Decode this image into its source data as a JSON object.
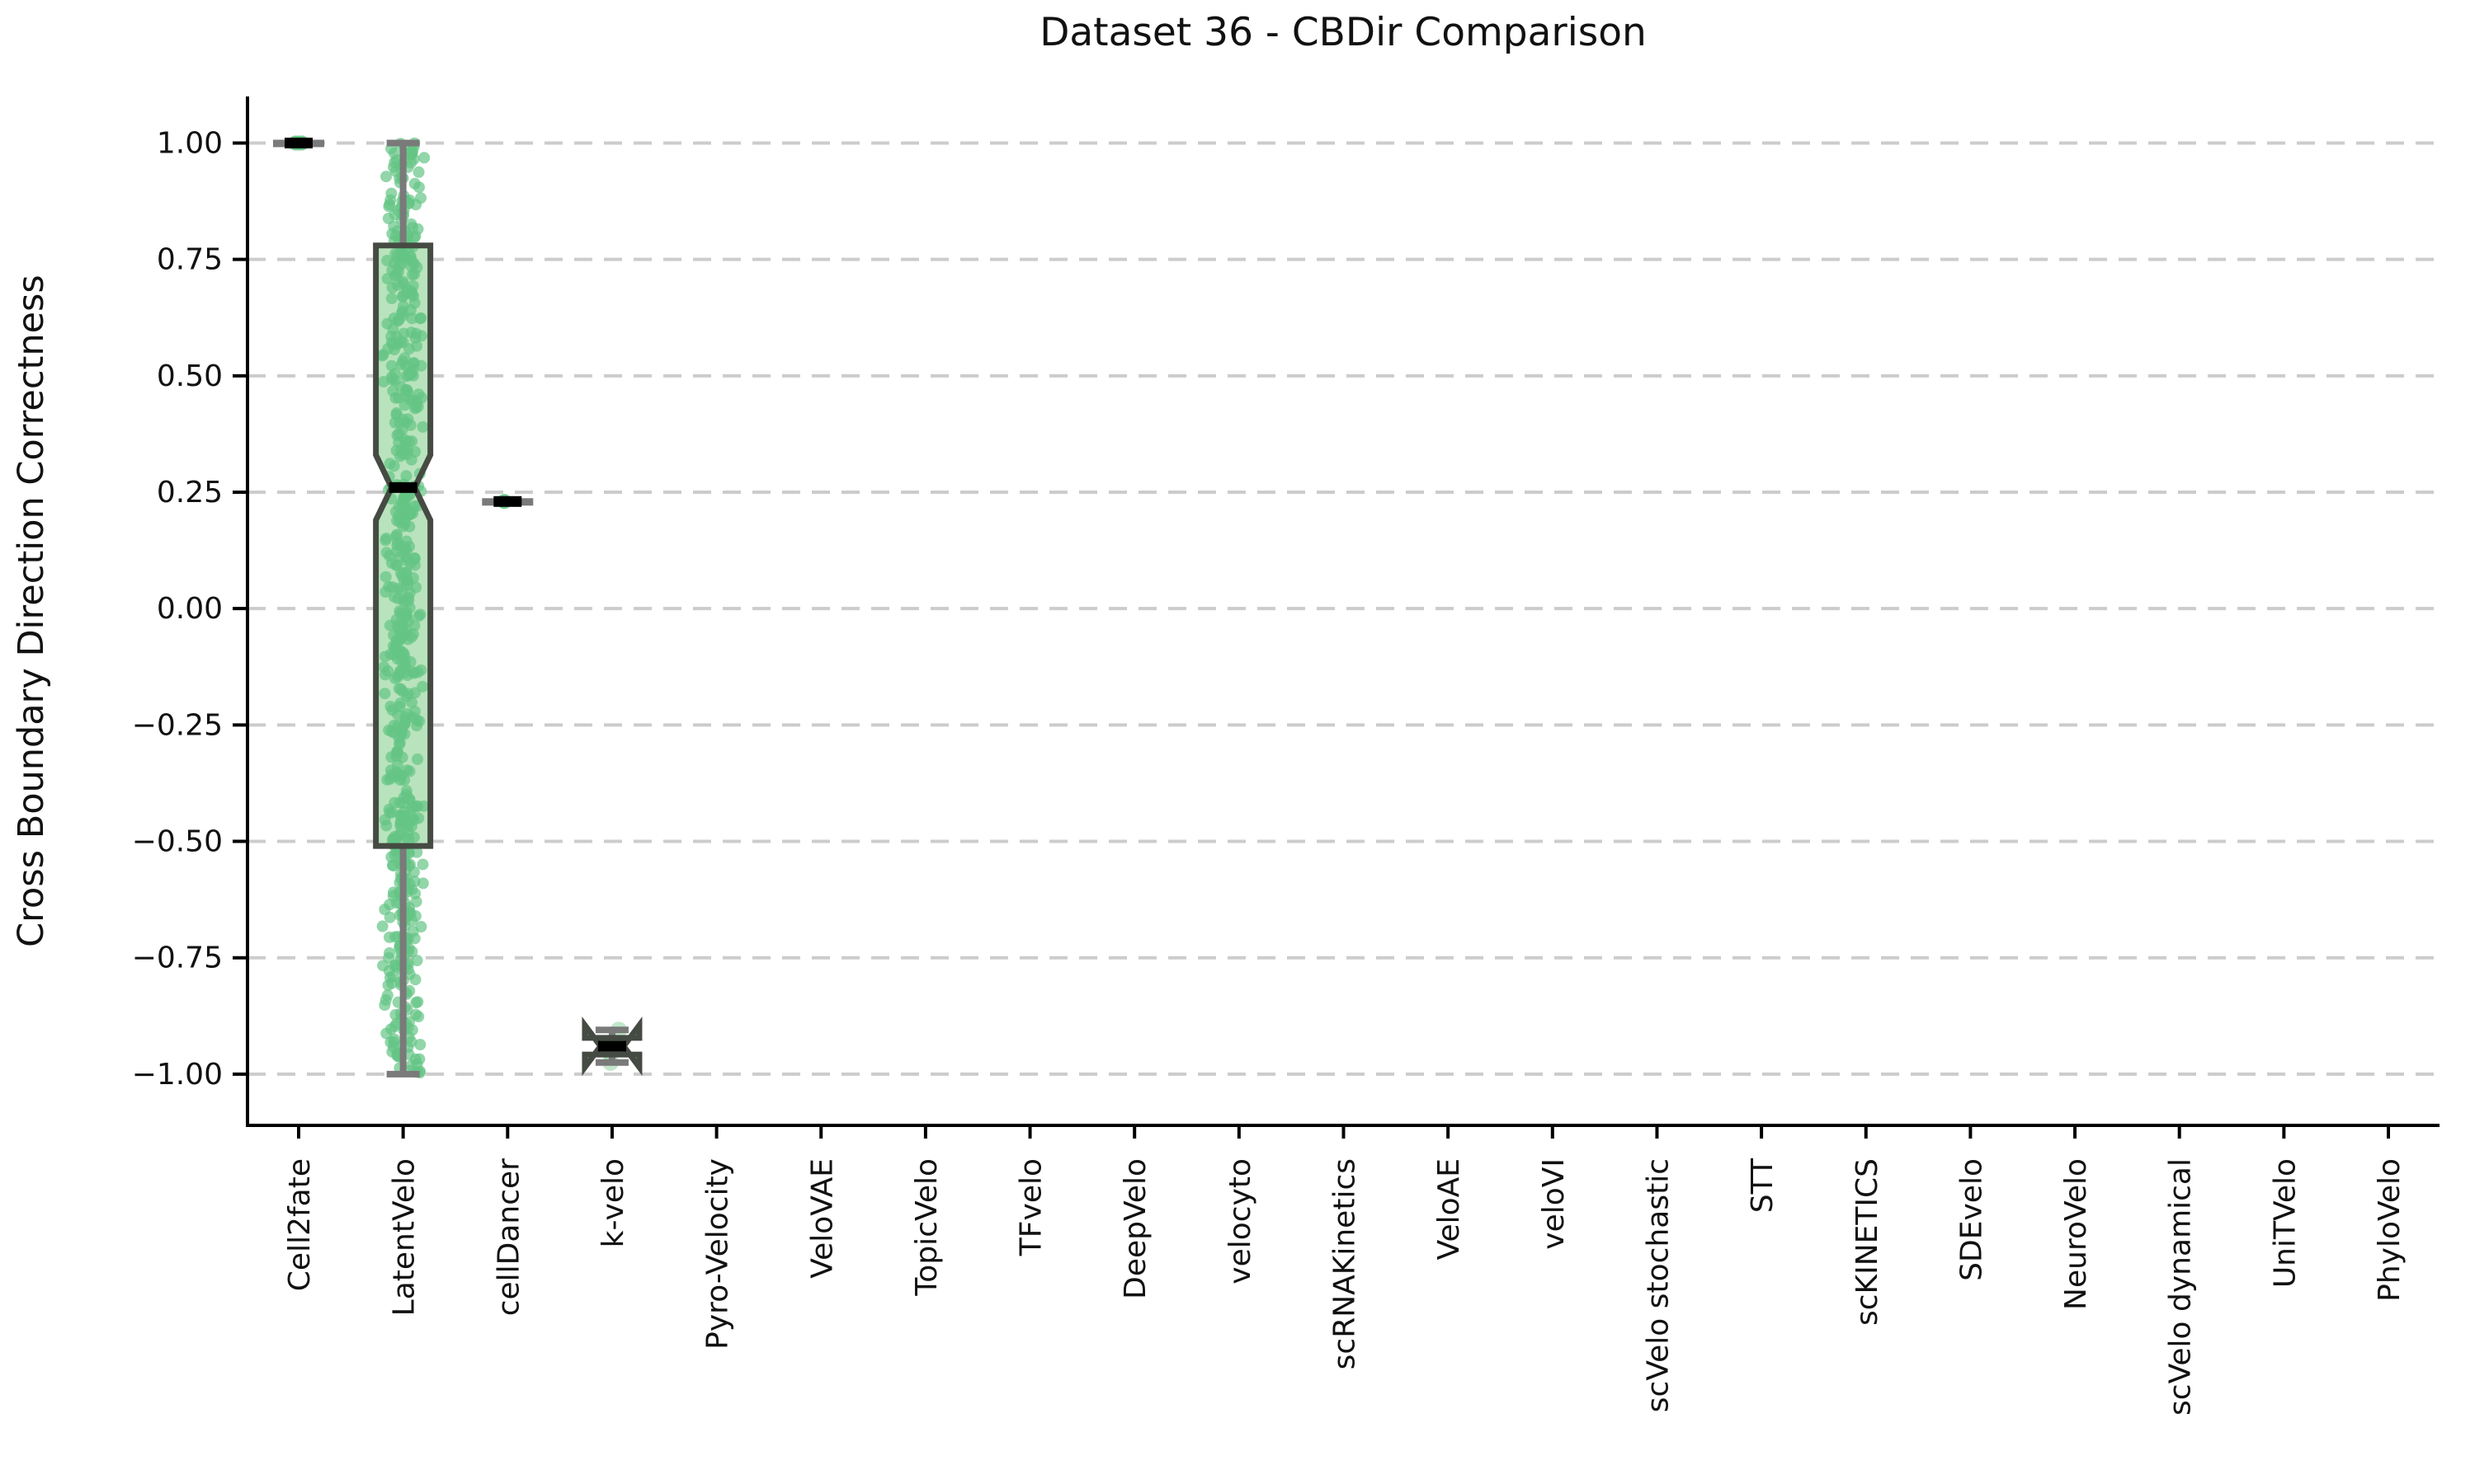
{
  "chart_data": {
    "type": "box",
    "title": "Dataset 36 - CBDir Comparison",
    "ylabel": "Cross Boundary Direction Correctness",
    "xlabel": "",
    "ylim": [
      -1.11,
      1.1
    ],
    "yticks": [
      1.0,
      0.75,
      0.5,
      0.25,
      0.0,
      -0.25,
      -0.5,
      -0.75,
      -1.0
    ],
    "ytick_labels": [
      "1.00",
      "0.75",
      "0.50",
      "0.25",
      "0.00",
      "−0.25",
      "−0.50",
      "−0.75",
      "−1.00"
    ],
    "grid": "dashed-horizontal",
    "legend": "none",
    "categories": [
      "Cell2fate",
      "LatentVelo",
      "cellDancer",
      "k-velo",
      "Pyro-Velocity",
      "VeloVAE",
      "TopicVelo",
      "TFvelo",
      "DeepVelo",
      "velocyto",
      "scRNAKinetics",
      "VeloAE",
      "veloVI",
      "scVelo stochastic",
      "STT",
      "scKINETICS",
      "SDEvelo",
      "NeuroVelo",
      "scVelo dynamical",
      "UniTVelo",
      "PhyloVelo"
    ],
    "boxes": [
      {
        "name": "Cell2fate",
        "kind": "degenerate",
        "median": 1.0,
        "points": [
          1.0,
          1.0,
          1.0
        ]
      },
      {
        "name": "LatentVelo",
        "kind": "notched",
        "median": 0.26,
        "q1": -0.51,
        "q3": 0.78,
        "notch_lo": 0.19,
        "notch_hi": 0.33,
        "whisker_lo": -1.0,
        "whisker_hi": 1.0,
        "jitter_points": {
          "count": 620,
          "min": -1.0,
          "max": 1.0,
          "seed": 42
        }
      },
      {
        "name": "cellDancer",
        "kind": "degenerate",
        "median": 0.23,
        "points": [
          0.23
        ]
      },
      {
        "name": "k-velo",
        "kind": "notched",
        "median": -0.94,
        "q1": -0.958,
        "q3": -0.922,
        "notch_lo": -0.985,
        "notch_hi": -0.895,
        "whisker_lo": -0.975,
        "whisker_hi": -0.905,
        "points": [
          -0.905,
          -0.955,
          -0.975
        ]
      },
      null,
      null,
      null,
      null,
      null,
      null,
      null,
      null,
      null,
      null,
      null,
      null,
      null,
      null,
      null,
      null,
      null
    ],
    "colors": {
      "point_green": "#64c584",
      "pale_point_green": "#8fd49f",
      "box_fill": "#b9e3bd",
      "box_edge": "#454b43",
      "median": "#000000",
      "whisker": "#7a7a7a",
      "gridline": "#cccccc",
      "spine": "#000000",
      "text": "#111111"
    }
  }
}
